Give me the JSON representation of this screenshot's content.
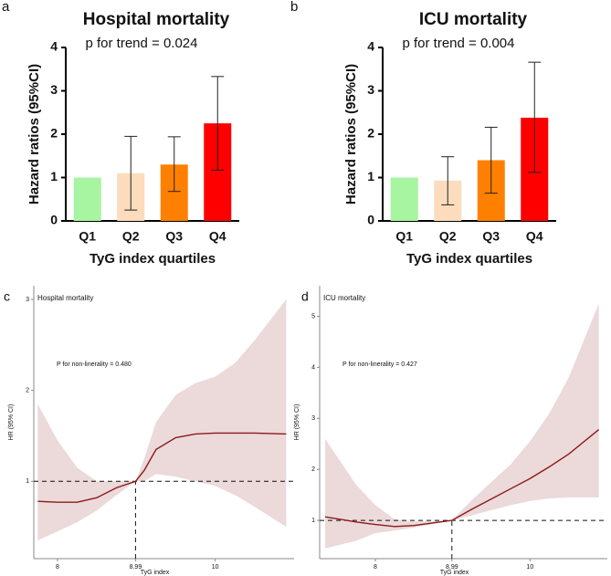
{
  "chart_data": [
    {
      "type": "bar",
      "panel_label": "a",
      "title": "Hospital mortality",
      "subtitle": "p for trend = 0.024",
      "y_label": "Hazard ratios (95%CI)",
      "x_label": "TyG index quartiles",
      "categories": [
        "Q1",
        "Q2",
        "Q3",
        "Q4"
      ],
      "values": [
        1.0,
        1.1,
        1.3,
        2.25
      ],
      "ci_lower": [
        1.0,
        0.25,
        0.68,
        1.17
      ],
      "ci_upper": [
        1.0,
        1.95,
        1.94,
        3.33
      ],
      "colors": [
        "#a7f5a0",
        "#fcdcbc",
        "#ff8000",
        "#ff0000"
      ],
      "ylim": [
        0,
        4
      ],
      "yticks": [
        0,
        1,
        2,
        3,
        4
      ]
    },
    {
      "type": "bar",
      "panel_label": "b",
      "title": "ICU mortality",
      "subtitle": "p for trend = 0.004",
      "y_label": "Hazard ratios (95%CI)",
      "x_label": "TyG index quartiles",
      "categories": [
        "Q1",
        "Q2",
        "Q3",
        "Q4"
      ],
      "values": [
        1.0,
        0.93,
        1.4,
        2.38
      ],
      "ci_lower": [
        1.0,
        0.37,
        0.64,
        1.12
      ],
      "ci_upper": [
        1.0,
        1.48,
        2.16,
        3.66
      ],
      "colors": [
        "#a7f5a0",
        "#fcdcbc",
        "#ff8000",
        "#ff0000"
      ],
      "ylim": [
        0,
        4
      ],
      "yticks": [
        0,
        1,
        2,
        3,
        4
      ]
    },
    {
      "type": "spline",
      "panel_label": "c",
      "title": "Hospital mortality",
      "annotation": "P for non-linerality = 0.480",
      "x_label": "TyG index",
      "y_label": "HR (95% CI)",
      "x": [
        7.75,
        8.0,
        8.25,
        8.5,
        8.75,
        8.99,
        9.1,
        9.25,
        9.5,
        9.75,
        10.0,
        10.25,
        10.5,
        10.9
      ],
      "values": [
        0.78,
        0.77,
        0.77,
        0.82,
        0.93,
        1.0,
        1.12,
        1.35,
        1.48,
        1.52,
        1.53,
        1.53,
        1.53,
        1.52
      ],
      "ci_lower": [
        0.35,
        0.45,
        0.55,
        0.68,
        0.85,
        1.0,
        1.0,
        1.08,
        1.05,
        1.0,
        0.95,
        0.85,
        0.72,
        0.5
      ],
      "ci_upper": [
        1.85,
        1.45,
        1.15,
        1.0,
        1.0,
        1.0,
        1.25,
        1.65,
        1.95,
        2.08,
        2.15,
        2.3,
        2.55,
        3.0
      ],
      "color": "#8b1a1a",
      "band_color": "#ecd9da",
      "ref_x": 8.99,
      "ref_y": 1,
      "xlim": [
        7.7,
        11.0
      ],
      "ylim": [
        0.15,
        3.15
      ],
      "xticks": [
        8,
        8.99,
        10
      ],
      "yticks": [
        1,
        2,
        3
      ]
    },
    {
      "type": "spline",
      "panel_label": "d",
      "title": "ICU mortality",
      "annotation": "P for non-linerality = 0.427",
      "x_label": "TyG index",
      "y_label": "HR (95% CI)",
      "x": [
        7.35,
        7.75,
        8.0,
        8.25,
        8.5,
        8.99,
        9.25,
        9.5,
        9.75,
        10.0,
        10.25,
        10.5,
        10.89
      ],
      "values": [
        1.07,
        0.97,
        0.92,
        0.88,
        0.9,
        1.0,
        1.22,
        1.42,
        1.62,
        1.82,
        2.05,
        2.3,
        2.78
      ],
      "ci_lower": [
        0.45,
        0.6,
        0.75,
        0.8,
        0.86,
        1.0,
        1.1,
        1.2,
        1.3,
        1.38,
        1.43,
        1.45,
        1.45
      ],
      "ci_upper": [
        2.6,
        1.7,
        1.3,
        1.02,
        0.98,
        1.0,
        1.4,
        1.75,
        2.1,
        2.55,
        3.1,
        3.8,
        5.25
      ],
      "color": "#8b1a1a",
      "band_color": "#ecd9da",
      "ref_x": 8.99,
      "ref_y": 1,
      "xlim": [
        7.28,
        11.0
      ],
      "ylim": [
        0.25,
        5.6
      ],
      "xticks": [
        8,
        8.99,
        10
      ],
      "yticks": [
        1,
        2,
        3,
        4,
        5
      ]
    }
  ]
}
